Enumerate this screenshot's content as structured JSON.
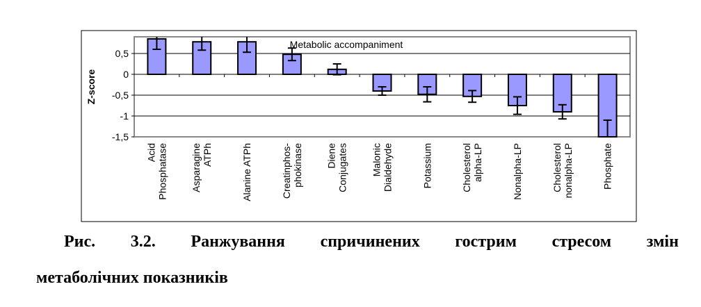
{
  "chart_data": {
    "type": "bar",
    "title": "Metabolic accompaniment",
    "xlabel": "",
    "ylabel": "Z-score",
    "ylim": [
      -1.5,
      0.9
    ],
    "yticks": [
      0.5,
      0,
      -0.5,
      -1,
      -1.5
    ],
    "ytick_labels": [
      "0,5",
      "0",
      "-0,5",
      "-1",
      "-1,5"
    ],
    "grid": true,
    "categories": [
      [
        "Acid",
        "Phosphatase"
      ],
      [
        "Asparagine",
        "ATPh"
      ],
      [
        "Alanine ATPh"
      ],
      [
        "Creatinphos-",
        "phokinase"
      ],
      [
        "Diene",
        "Conjugates"
      ],
      [
        "Malonic",
        "Dialdehyde"
      ],
      [
        "Potassium"
      ],
      [
        "Cholesterol",
        "alpha-LP"
      ],
      [
        "Nonalpha-LP"
      ],
      [
        "Cholesterol",
        "nonalpha-LP"
      ],
      [
        "Phosphate"
      ]
    ],
    "values": [
      0.85,
      0.78,
      0.78,
      0.48,
      0.12,
      -0.4,
      -0.48,
      -0.53,
      -0.75,
      -0.9,
      -1.5
    ],
    "errors": [
      0.25,
      0.2,
      0.25,
      0.15,
      0.13,
      0.1,
      0.18,
      0.14,
      0.21,
      0.17,
      0.4
    ],
    "bar_color": "#9999ff"
  },
  "caption": {
    "line1": [
      "Рис.",
      "3.2.",
      "Ранжування",
      "спричинених",
      "гострим",
      "стресом",
      "змін"
    ],
    "line2": "метаболічних показників"
  }
}
